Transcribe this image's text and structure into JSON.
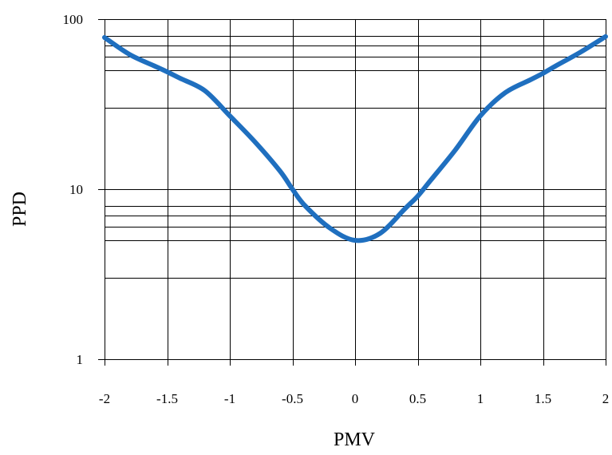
{
  "chart_data": {
    "type": "line",
    "title": "",
    "xlabel": "PMV",
    "ylabel": "PPD",
    "xlim": [
      -2,
      2
    ],
    "ylim": [
      1,
      100
    ],
    "yscale": "log",
    "grid": true,
    "x_ticks": [
      -2,
      -1.5,
      -1,
      -0.5,
      0,
      0.5,
      1,
      1.5,
      2
    ],
    "x_tick_labels": [
      "-2",
      "-1.5",
      "-1",
      "-0.5",
      "0",
      "0.5",
      "1",
      "1.5",
      "2"
    ],
    "y_ticks": [
      1,
      10,
      100
    ],
    "y_tick_labels": [
      "1",
      "10",
      "100"
    ],
    "y_minor_gridlines": [
      3,
      5,
      6,
      7,
      8,
      30,
      50,
      60,
      70,
      80
    ],
    "series": [
      {
        "color": "#1f6fbf",
        "x": [
          -2,
          -1.8,
          -1.6,
          -1.5,
          -1.4,
          -1.2,
          -1.0,
          -0.8,
          -0.6,
          -0.5,
          -0.4,
          -0.2,
          0,
          0.2,
          0.4,
          0.5,
          0.6,
          0.8,
          1.0,
          1.2,
          1.4,
          1.5,
          1.6,
          1.8,
          2
        ],
        "y": [
          78,
          62,
          53,
          49,
          45,
          38,
          27,
          19,
          12.8,
          10,
          8,
          5.9,
          5,
          5.5,
          7.7,
          9.1,
          11.2,
          17,
          27,
          37,
          44,
          48,
          53,
          64,
          79
        ]
      }
    ]
  }
}
